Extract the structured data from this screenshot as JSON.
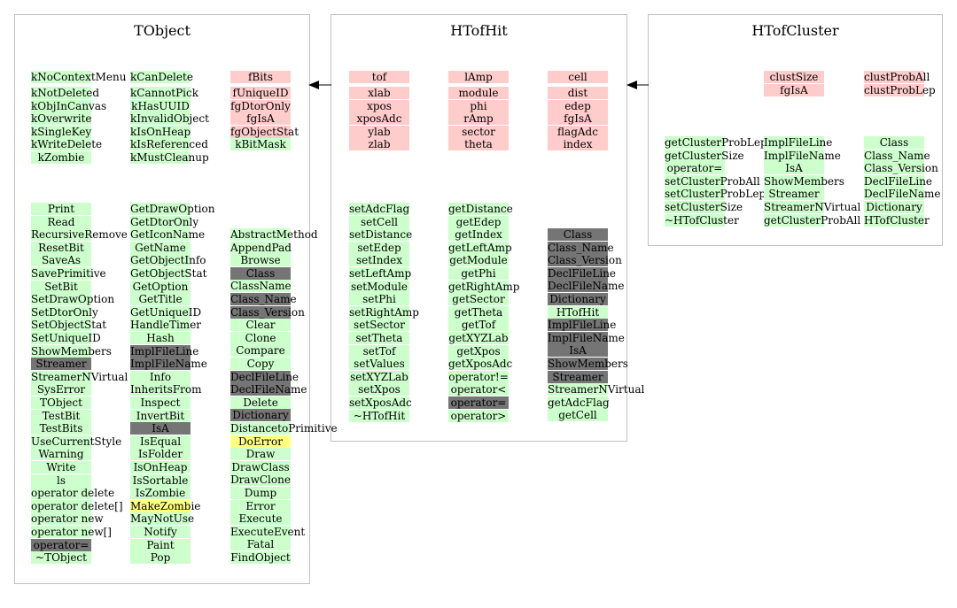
{
  "classes": [
    {
      "id": "TObject",
      "title": "TObject",
      "members": [
        {
          "items": [
            {
              "t": "kNoContextMenu",
              "k": "f"
            }
          ]
        },
        {
          "items": [
            {
              "t": "kCanDelete",
              "k": "f"
            }
          ]
        },
        {
          "items": [
            {
              "t": "fBits",
              "k": "m"
            }
          ]
        },
        {
          "items": [
            {
              "t": "kNotDeleted",
              "k": "f"
            },
            {
              "t": "kObjInCanvas",
              "k": "f"
            },
            {
              "t": "kOverwrite",
              "k": "f"
            },
            {
              "t": "kSingleKey",
              "k": "f"
            },
            {
              "t": "kWriteDelete",
              "k": "f"
            },
            {
              "t": "kZombie",
              "k": "f"
            }
          ]
        },
        {
          "items": [
            {
              "t": "kCannotPick",
              "k": "f"
            },
            {
              "t": "kHasUUID",
              "k": "f"
            },
            {
              "t": "kInvalidObject",
              "k": "f"
            },
            {
              "t": "kIsOnHeap",
              "k": "f"
            },
            {
              "t": "kIsReferenced",
              "k": "f"
            },
            {
              "t": "kMustCleanup",
              "k": "f"
            }
          ]
        },
        {
          "items": [
            {
              "t": "fUniqueID",
              "k": "m"
            },
            {
              "t": "fgDtorOnly",
              "k": "m"
            },
            {
              "t": "fgIsA",
              "k": "m"
            },
            {
              "t": "fgObjectStat",
              "k": "m"
            },
            {
              "t": "kBitMask",
              "k": "f"
            }
          ]
        }
      ],
      "methods": [
        {
          "items": [
            {
              "t": "Print",
              "k": "f"
            },
            {
              "t": "Read",
              "k": "f"
            },
            {
              "t": "RecursiveRemove",
              "k": "f"
            },
            {
              "t": "ResetBit",
              "k": "f"
            },
            {
              "t": "SaveAs",
              "k": "f"
            },
            {
              "t": "SavePrimitive",
              "k": "f"
            },
            {
              "t": "SetBit",
              "k": "f"
            },
            {
              "t": "SetDrawOption",
              "k": "f"
            },
            {
              "t": "SetDtorOnly",
              "k": "f"
            },
            {
              "t": "SetObjectStat",
              "k": "f"
            },
            {
              "t": "SetUniqueID",
              "k": "f"
            },
            {
              "t": "ShowMembers",
              "k": "f"
            },
            {
              "t": "Streamer",
              "k": "d"
            },
            {
              "t": "StreamerNVirtual",
              "k": "f"
            },
            {
              "t": "SysError",
              "k": "f"
            },
            {
              "t": "TObject",
              "k": "f"
            },
            {
              "t": "TestBit",
              "k": "f"
            },
            {
              "t": "TestBits",
              "k": "f"
            },
            {
              "t": "UseCurrentStyle",
              "k": "f"
            },
            {
              "t": "Warning",
              "k": "f"
            },
            {
              "t": "Write",
              "k": "f"
            },
            {
              "t": "ls",
              "k": "f"
            },
            {
              "t": "operator delete",
              "k": "f"
            },
            {
              "t": "operator delete[]",
              "k": "f"
            },
            {
              "t": "operator new",
              "k": "f"
            },
            {
              "t": "operator new[]",
              "k": "f"
            },
            {
              "t": "operator=",
              "k": "d"
            },
            {
              "t": "~TObject",
              "k": "f"
            }
          ]
        },
        {
          "items": [
            {
              "t": "GetDrawOption",
              "k": "f"
            },
            {
              "t": "GetDtorOnly",
              "k": "f"
            },
            {
              "t": "GetIconName",
              "k": "f"
            },
            {
              "t": "GetName",
              "k": "f"
            },
            {
              "t": "GetObjectInfo",
              "k": "f"
            },
            {
              "t": "GetObjectStat",
              "k": "f"
            },
            {
              "t": "GetOption",
              "k": "f"
            },
            {
              "t": "GetTitle",
              "k": "f"
            },
            {
              "t": "GetUniqueID",
              "k": "f"
            },
            {
              "t": "HandleTimer",
              "k": "f"
            },
            {
              "t": "Hash",
              "k": "f"
            },
            {
              "t": "ImplFileLine",
              "k": "d"
            },
            {
              "t": "ImplFileName",
              "k": "d"
            },
            {
              "t": "Info",
              "k": "f"
            },
            {
              "t": "InheritsFrom",
              "k": "f"
            },
            {
              "t": "Inspect",
              "k": "f"
            },
            {
              "t": "InvertBit",
              "k": "f"
            },
            {
              "t": "IsA",
              "k": "d"
            },
            {
              "t": "IsEqual",
              "k": "f"
            },
            {
              "t": "IsFolder",
              "k": "f"
            },
            {
              "t": "IsOnHeap",
              "k": "f"
            },
            {
              "t": "IsSortable",
              "k": "f"
            },
            {
              "t": "IsZombie",
              "k": "f"
            },
            {
              "t": "MakeZombie",
              "k": "y"
            },
            {
              "t": "MayNotUse",
              "k": "f"
            },
            {
              "t": "Notify",
              "k": "f"
            },
            {
              "t": "Paint",
              "k": "f"
            },
            {
              "t": "Pop",
              "k": "f"
            }
          ]
        },
        {
          "items": [
            {
              "t": "AbstractMethod",
              "k": "f"
            },
            {
              "t": "AppendPad",
              "k": "f"
            },
            {
              "t": "Browse",
              "k": "f"
            },
            {
              "t": "Class",
              "k": "d"
            },
            {
              "t": "ClassName",
              "k": "f"
            },
            {
              "t": "Class_Name",
              "k": "d"
            },
            {
              "t": "Class_Version",
              "k": "d"
            },
            {
              "t": "Clear",
              "k": "f"
            },
            {
              "t": "Clone",
              "k": "f"
            },
            {
              "t": "Compare",
              "k": "f"
            },
            {
              "t": "Copy",
              "k": "f"
            },
            {
              "t": "DeclFileLine",
              "k": "d"
            },
            {
              "t": "DeclFileName",
              "k": "d"
            },
            {
              "t": "Delete",
              "k": "f"
            },
            {
              "t": "Dictionary",
              "k": "d"
            },
            {
              "t": "DistancetoPrimitive",
              "k": "f"
            },
            {
              "t": "DoError",
              "k": "y"
            },
            {
              "t": "Draw",
              "k": "f"
            },
            {
              "t": "DrawClass",
              "k": "f"
            },
            {
              "t": "DrawClone",
              "k": "f"
            },
            {
              "t": "Dump",
              "k": "f"
            },
            {
              "t": "Error",
              "k": "f"
            },
            {
              "t": "Execute",
              "k": "f"
            },
            {
              "t": "ExecuteEvent",
              "k": "f"
            },
            {
              "t": "Fatal",
              "k": "f"
            },
            {
              "t": "FindObject",
              "k": "f"
            }
          ]
        }
      ]
    },
    {
      "id": "HTofHit",
      "title": "HTofHit",
      "members": [
        {
          "items": [
            {
              "t": "tof",
              "k": "m"
            }
          ]
        },
        {
          "items": [
            {
              "t": "lAmp",
              "k": "m"
            }
          ]
        },
        {
          "items": [
            {
              "t": "cell",
              "k": "m"
            }
          ]
        },
        {
          "items": [
            {
              "t": "xlab",
              "k": "m"
            },
            {
              "t": "xpos",
              "k": "m"
            },
            {
              "t": "xposAdc",
              "k": "m"
            },
            {
              "t": "ylab",
              "k": "m"
            },
            {
              "t": "zlab",
              "k": "m"
            }
          ]
        },
        {
          "items": [
            {
              "t": "module",
              "k": "m"
            },
            {
              "t": "phi",
              "k": "m"
            },
            {
              "t": "rAmp",
              "k": "m"
            },
            {
              "t": "sector",
              "k": "m"
            },
            {
              "t": "theta",
              "k": "m"
            }
          ]
        },
        {
          "items": [
            {
              "t": "dist",
              "k": "m"
            },
            {
              "t": "edep",
              "k": "m"
            },
            {
              "t": "fgIsA",
              "k": "m"
            },
            {
              "t": "flagAdc",
              "k": "m"
            },
            {
              "t": "index",
              "k": "m"
            }
          ]
        }
      ],
      "methods": [
        {
          "items": [
            {
              "t": "setAdcFlag",
              "k": "f"
            },
            {
              "t": "setCell",
              "k": "f"
            },
            {
              "t": "setDistance",
              "k": "f"
            },
            {
              "t": "setEdep",
              "k": "f"
            },
            {
              "t": "setIndex",
              "k": "f"
            },
            {
              "t": "setLeftAmp",
              "k": "f"
            },
            {
              "t": "setModule",
              "k": "f"
            },
            {
              "t": "setPhi",
              "k": "f"
            },
            {
              "t": "setRightAmp",
              "k": "f"
            },
            {
              "t": "setSector",
              "k": "f"
            },
            {
              "t": "setTheta",
              "k": "f"
            },
            {
              "t": "setTof",
              "k": "f"
            },
            {
              "t": "setValues",
              "k": "f"
            },
            {
              "t": "setXYZLab",
              "k": "f"
            },
            {
              "t": "setXpos",
              "k": "f"
            },
            {
              "t": "setXposAdc",
              "k": "f"
            },
            {
              "t": "~HTofHit",
              "k": "f"
            }
          ]
        },
        {
          "items": [
            {
              "t": "getDistance",
              "k": "f"
            },
            {
              "t": "getEdep",
              "k": "f"
            },
            {
              "t": "getIndex",
              "k": "f"
            },
            {
              "t": "getLeftAmp",
              "k": "f"
            },
            {
              "t": "getModule",
              "k": "f"
            },
            {
              "t": "getPhi",
              "k": "f"
            },
            {
              "t": "getRightAmp",
              "k": "f"
            },
            {
              "t": "getSector",
              "k": "f"
            },
            {
              "t": "getTheta",
              "k": "f"
            },
            {
              "t": "getTof",
              "k": "f"
            },
            {
              "t": "getXYZLab",
              "k": "f"
            },
            {
              "t": "getXpos",
              "k": "f"
            },
            {
              "t": "getXposAdc",
              "k": "f"
            },
            {
              "t": "operator!=",
              "k": "f"
            },
            {
              "t": "operator<",
              "k": "f"
            },
            {
              "t": "operator=",
              "k": "d"
            },
            {
              "t": "operator>",
              "k": "f"
            }
          ]
        },
        {
          "items": [
            {
              "t": "Class",
              "k": "d"
            },
            {
              "t": "Class_Name",
              "k": "d"
            },
            {
              "t": "Class_Version",
              "k": "d"
            },
            {
              "t": "DeclFileLine",
              "k": "d"
            },
            {
              "t": "DeclFileName",
              "k": "d"
            },
            {
              "t": "Dictionary",
              "k": "d"
            },
            {
              "t": "HTofHit",
              "k": "f"
            },
            {
              "t": "ImplFileLine",
              "k": "d"
            },
            {
              "t": "ImplFileName",
              "k": "d"
            },
            {
              "t": "IsA",
              "k": "d"
            },
            {
              "t": "ShowMembers",
              "k": "d"
            },
            {
              "t": "Streamer",
              "k": "d"
            },
            {
              "t": "StreamerNVirtual",
              "k": "f"
            },
            {
              "t": "getAdcFlag",
              "k": "f"
            },
            {
              "t": "getCell",
              "k": "f"
            }
          ]
        }
      ]
    },
    {
      "id": "HTofCluster",
      "title": "HTofCluster",
      "members": [
        {
          "items": []
        },
        {
          "items": [
            {
              "t": "clustSize",
              "k": "m"
            },
            {
              "t": "fgIsA",
              "k": "m"
            }
          ]
        },
        {
          "items": [
            {
              "t": "clustProbAll",
              "k": "m"
            },
            {
              "t": "clustProbLep",
              "k": "m"
            }
          ]
        }
      ],
      "methods": [
        {
          "items": [
            {
              "t": "getClusterProbLep",
              "k": "f"
            },
            {
              "t": "getClusterSize",
              "k": "f"
            },
            {
              "t": "operator=",
              "k": "f"
            },
            {
              "t": "setClusterProbAll",
              "k": "f"
            },
            {
              "t": "setClusterProbLep",
              "k": "f"
            },
            {
              "t": "setClusterSize",
              "k": "f"
            },
            {
              "t": "~HTofCluster",
              "k": "f"
            }
          ]
        },
        {
          "items": [
            {
              "t": "ImplFileLine",
              "k": "f"
            },
            {
              "t": "ImplFileName",
              "k": "f"
            },
            {
              "t": "IsA",
              "k": "f"
            },
            {
              "t": "ShowMembers",
              "k": "f"
            },
            {
              "t": "Streamer",
              "k": "f"
            },
            {
              "t": "StreamerNVirtual",
              "k": "f"
            },
            {
              "t": "getClusterProbAll",
              "k": "f"
            }
          ]
        },
        {
          "items": [
            {
              "t": "Class",
              "k": "f"
            },
            {
              "t": "Class_Name",
              "k": "f"
            },
            {
              "t": "Class_Version",
              "k": "f"
            },
            {
              "t": "DeclFileLine",
              "k": "f"
            },
            {
              "t": "DeclFileName",
              "k": "f"
            },
            {
              "t": "Dictionary",
              "k": "f"
            },
            {
              "t": "HTofCluster",
              "k": "f"
            }
          ]
        }
      ]
    }
  ],
  "colors": {
    "data_member": "#ffcccc",
    "function_member": "#ccffcc",
    "inherited_virtual": "#757575",
    "protected": "#ffff80",
    "box_border": "#c0c0c0"
  }
}
